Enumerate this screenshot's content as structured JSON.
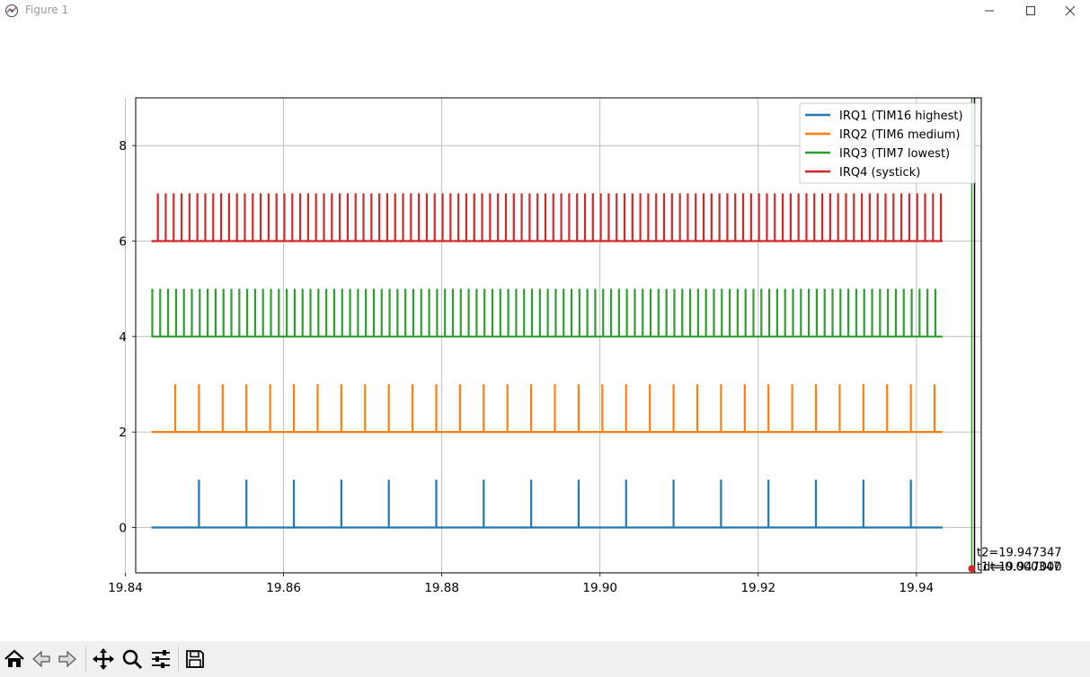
{
  "window": {
    "title": "Figure 1",
    "minimize_label": "—",
    "maximize_label": "☐",
    "close_label": "✕"
  },
  "toolbar": {
    "buttons": [
      "home-icon",
      "back-icon",
      "forward-icon",
      "pan-icon",
      "zoom-icon",
      "configure-subplots-icon",
      "save-icon"
    ]
  },
  "colors": {
    "irq1": "#1f77b4",
    "irq2": "#ff7f0e",
    "irq3": "#2ca02c",
    "irq4": "#d62728"
  },
  "annotations": {
    "t2": "t2=19.947347",
    "t1": "t1=19.947000",
    "dt": "dt=0.000347"
  },
  "chart_data": {
    "type": "line",
    "title": "",
    "xlabel": "",
    "ylabel": "",
    "xlim": [
      19.8413,
      19.9482
    ],
    "ylim": [
      -0.95,
      9.0
    ],
    "x_ticks": [
      "19.84",
      "19.86",
      "19.88",
      "19.90",
      "19.92",
      "19.94"
    ],
    "x_tick_values": [
      19.84,
      19.86,
      19.88,
      19.9,
      19.92,
      19.94
    ],
    "y_ticks": [
      "0",
      "2",
      "4",
      "6",
      "8"
    ],
    "y_tick_values": [
      0,
      2,
      4,
      6,
      8
    ],
    "grid": true,
    "legend_position": "top-right",
    "x_start": 19.8433,
    "x_end": 19.9433,
    "series": [
      {
        "name": "IRQ1 (TIM16 highest)",
        "color": "#1f77b4",
        "baseline": 0,
        "pulse_height": 1,
        "pulse_start": 19.8493,
        "pulse_period": 0.006,
        "pulse_count": 16
      },
      {
        "name": "IRQ2 (TIM6 medium)",
        "color": "#ff7f0e",
        "baseline": 2,
        "pulse_height": 1,
        "pulse_start": 19.8463,
        "pulse_period": 0.003,
        "pulse_count": 33
      },
      {
        "name": "IRQ3 (TIM7 lowest)",
        "color": "#2ca02c",
        "baseline": 4,
        "pulse_height": 1,
        "pulse_start": 19.8434,
        "pulse_period": 0.001,
        "pulse_count": 100
      },
      {
        "name": "IRQ4 (systick)",
        "color": "#d62728",
        "baseline": 6,
        "pulse_height": 1,
        "pulse_start": 19.8441,
        "pulse_period": 0.001,
        "pulse_count": 100
      }
    ],
    "cursor_lines": [
      {
        "x": 19.947,
        "color": "#2ca02c"
      },
      {
        "x": 19.947347,
        "color": "#000000"
      }
    ],
    "marker": {
      "x": 19.947,
      "y": -0.9,
      "color": "#d62728"
    }
  }
}
